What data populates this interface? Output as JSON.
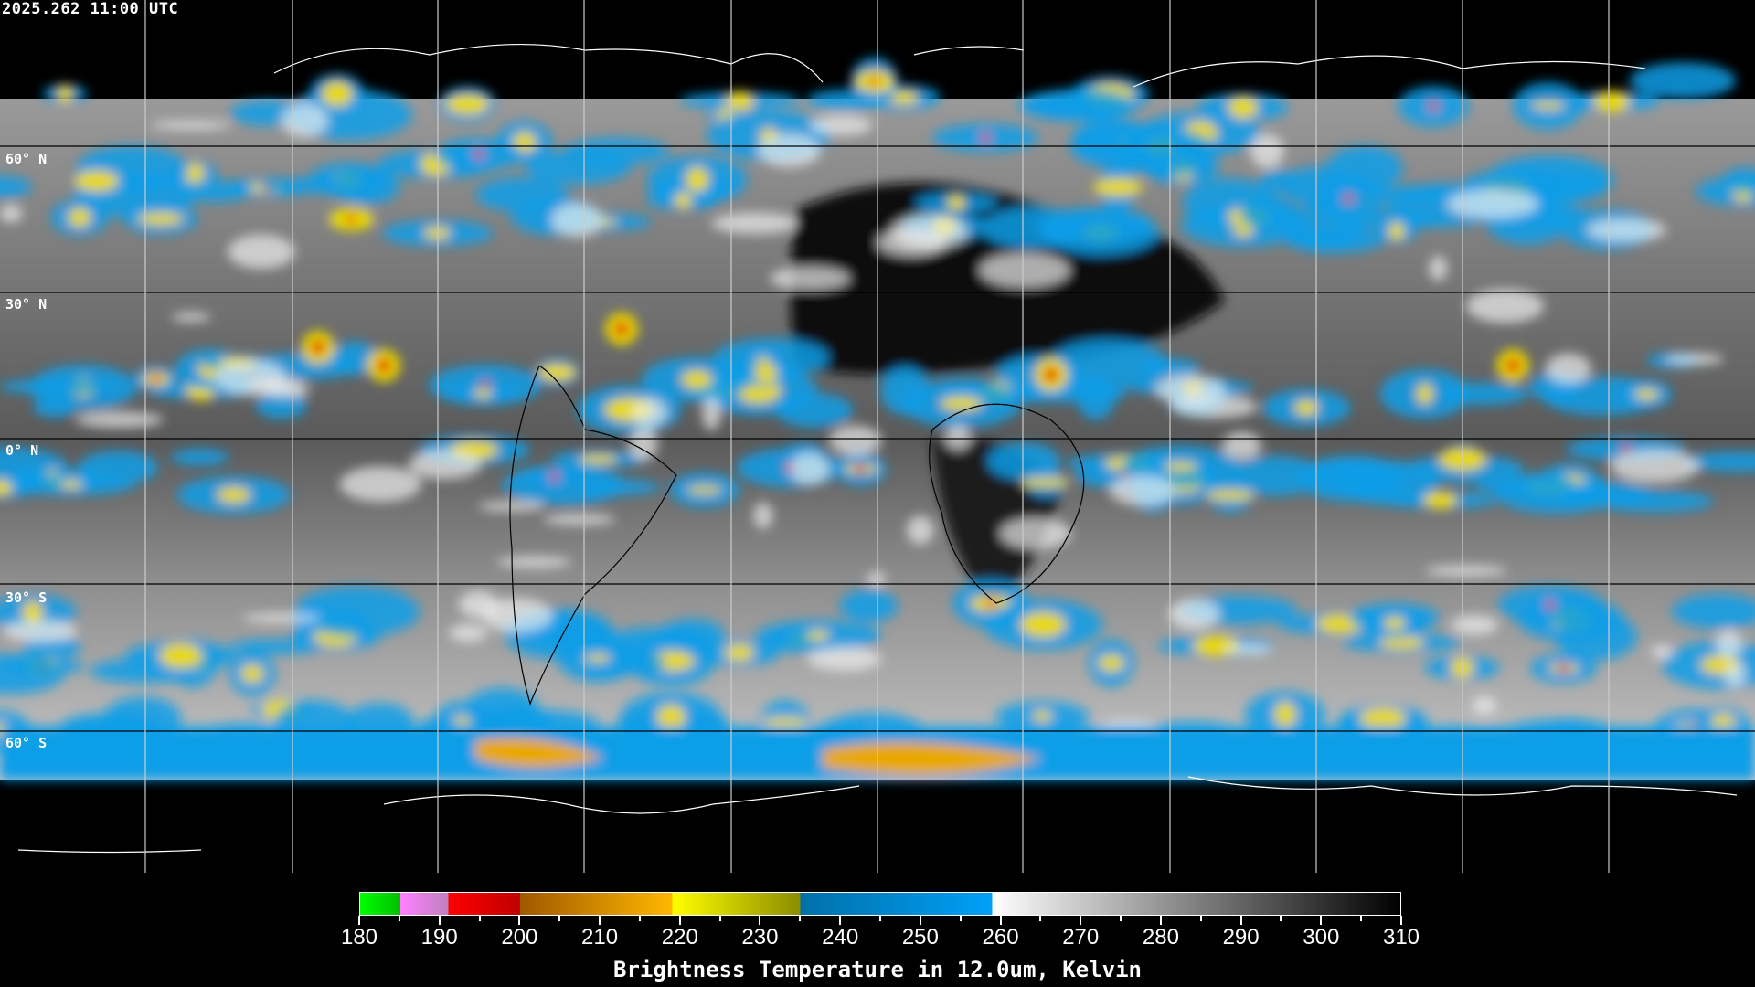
{
  "timestamp": "2025.262 11:00 UTC",
  "latitude_labels": [
    "60° N",
    "30° N",
    "0° N",
    "30° S",
    "60° S"
  ],
  "colorbar": {
    "title": "Brightness Temperature in 12.0um, Kelvin",
    "range": [
      180,
      310
    ],
    "tick_labels": [
      "180",
      "190",
      "200",
      "210",
      "220",
      "230",
      "240",
      "250",
      "260",
      "270",
      "280",
      "290",
      "300",
      "310"
    ],
    "segments": [
      {
        "from": 180,
        "to": 185,
        "colors": [
          "#00ff00",
          "#00c000"
        ]
      },
      {
        "from": 185,
        "to": 191,
        "colors": [
          "#ff80ff",
          "#c080c0"
        ]
      },
      {
        "from": 191,
        "to": 200,
        "colors": [
          "#ff0000",
          "#c00000"
        ]
      },
      {
        "from": 200,
        "to": 219,
        "colors": [
          "#a05800",
          "#ffb800"
        ]
      },
      {
        "from": 219,
        "to": 235,
        "colors": [
          "#ffff00",
          "#8c8c00"
        ]
      },
      {
        "from": 235,
        "to": 259,
        "colors": [
          "#0070a8",
          "#00a0f8"
        ]
      },
      {
        "from": 259,
        "to": 310,
        "colors": [
          "#ffffff",
          "#000000"
        ]
      }
    ]
  }
}
